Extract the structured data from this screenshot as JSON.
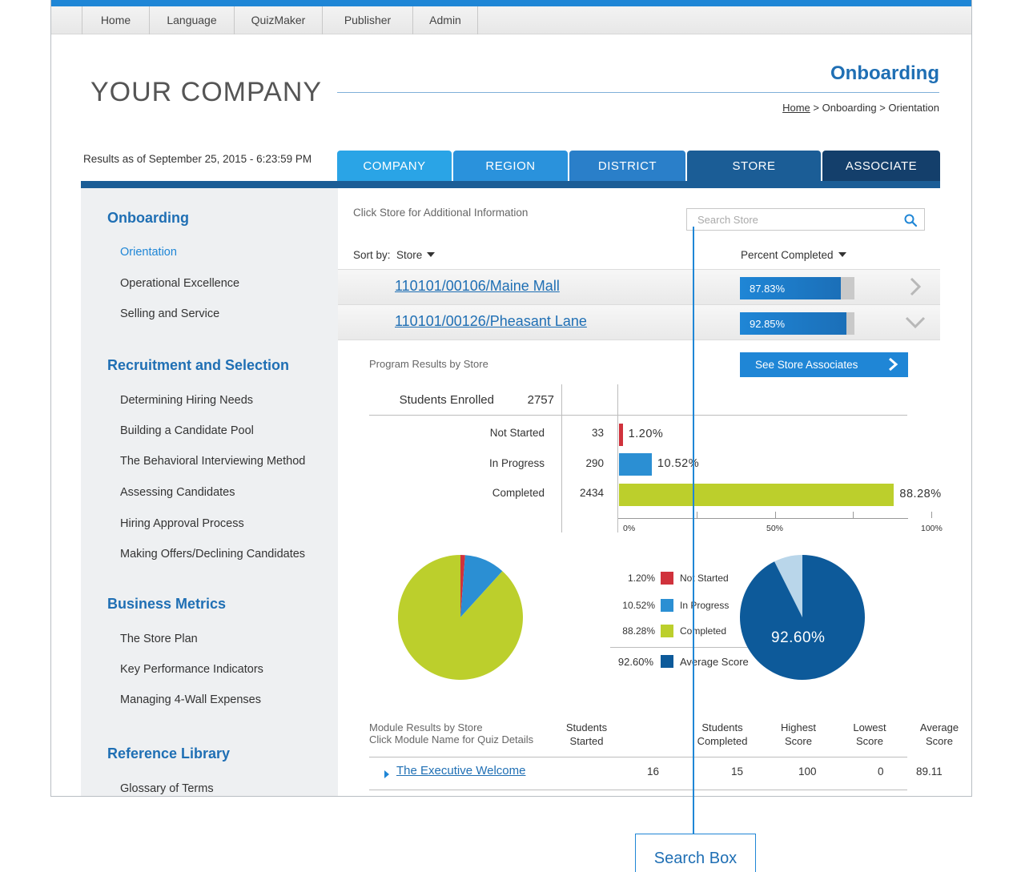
{
  "topnav": {
    "items": [
      "Home",
      "Language",
      "QuizMaker",
      "Publisher",
      "Admin"
    ]
  },
  "header": {
    "company": "YOUR COMPANY",
    "section_title": "Onboarding",
    "breadcrumb": {
      "home": "Home",
      "sep1": " > ",
      "section": "Onboarding",
      "sep2": " > ",
      "page": "Orientation"
    },
    "results_asof": "Results as of September 25, 2015 - 6:23:59 PM"
  },
  "tabs": [
    {
      "label": "COMPANY",
      "color": "#2aa4e6"
    },
    {
      "label": "REGION",
      "color": "#2a92dc"
    },
    {
      "label": "DISTRICT",
      "color": "#2a7fc9"
    },
    {
      "label": "STORE",
      "color": "#1b5d96",
      "active": true
    },
    {
      "label": "ASSOCIATE",
      "color": "#143f6b"
    }
  ],
  "sidebar": {
    "sections": [
      {
        "heading": "Onboarding",
        "items": [
          "Orientation",
          "Operational Excellence",
          "Selling and Service"
        ],
        "active_item": "Orientation"
      },
      {
        "heading": "Recruitment and Selection",
        "items": [
          "Determining Hiring Needs",
          "Building a Candidate Pool",
          "The Behavioral Interviewing Method",
          "Assessing Candidates",
          "Hiring Approval Process",
          "Making Offers/Declining Candidates"
        ]
      },
      {
        "heading": "Business Metrics",
        "items": [
          "The Store Plan",
          "Key Performance Indicators",
          "Managing 4-Wall Expenses"
        ]
      },
      {
        "heading": "Reference Library",
        "items": [
          "Glossary of Terms"
        ]
      }
    ]
  },
  "main": {
    "hint": "Click Store for Additional Information",
    "search_placeholder": "Search Store",
    "sort_label": "Sort by:",
    "sort_value": "Store",
    "sort_column": "Percent Completed",
    "stores": [
      {
        "name": "110101/00106/Maine Mall",
        "percent_text": "87.83%",
        "percent": 87.83,
        "expanded": false
      },
      {
        "name": "110101/00126/Pheasant Lane",
        "percent_text": "92.85%",
        "percent": 92.85,
        "expanded": true
      }
    ],
    "program_title": "Program Results by Store",
    "see_associates": "See Store Associates",
    "students_enrolled_label": "Students Enrolled",
    "students_enrolled": "2757",
    "stats": [
      {
        "label": "Not Started",
        "count": "33",
        "percent_text": "1.20%",
        "percent": 1.2,
        "color": "#d0323c"
      },
      {
        "label": "In Progress",
        "count": "290",
        "percent_text": "10.52%",
        "percent": 10.52,
        "color": "#2b8fd3"
      },
      {
        "label": "Completed",
        "count": "2434",
        "percent_text": "88.28%",
        "percent": 88.28,
        "color": "#bccf2c"
      }
    ],
    "axis_labels": [
      "0%",
      "50%",
      "100%"
    ],
    "legend": [
      {
        "pct": "1.20%",
        "label": "Not Started",
        "color": "#d0323c"
      },
      {
        "pct": "10.52%",
        "label": "In Progress",
        "color": "#2b8fd3"
      },
      {
        "pct": "88.28%",
        "label": "Completed",
        "color": "#bccf2c"
      },
      {
        "pct": "92.60%",
        "label": "Average Score",
        "color": "#0d5a9a"
      }
    ],
    "average_score_text": "92.60%",
    "average_score": 92.6,
    "module_title_1": "Module Results by Store",
    "module_title_2": "Click Module Name for Quiz Details",
    "module_headers": [
      [
        "Students",
        "Started"
      ],
      [
        "Students",
        "Completed"
      ],
      [
        "Highest",
        "Score"
      ],
      [
        "Lowest",
        "Score"
      ],
      [
        "Average",
        "Score"
      ]
    ],
    "modules": [
      {
        "name": "The Executive Welcome",
        "started": "16",
        "completed": "15",
        "highest": "100",
        "lowest": "0",
        "average": "89.11"
      }
    ]
  },
  "annotation": {
    "label": "Search Box"
  }
}
